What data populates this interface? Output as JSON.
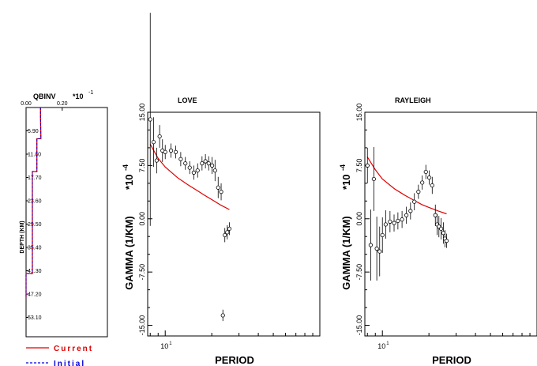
{
  "chart_data": [
    {
      "type": "step-line",
      "title": "QBINV",
      "x_multiplier": "*10",
      "x_multiplier_exp": "-1",
      "xlabel": "",
      "ylabel": "DEPTH (KM)",
      "x_tick_labels": [
        "0.00",
        "0.20"
      ],
      "y_ticks": [
        "5.90",
        "11.80",
        "17.70",
        "23.60",
        "29.50",
        "35.40",
        "41.30",
        "47.20",
        "53.10"
      ],
      "xlim": [
        0.0,
        0.45
      ],
      "ylim": [
        0,
        58
      ],
      "y_inverted": true,
      "series": [
        {
          "name": "Current",
          "color": "#e00000",
          "depth": [
            0,
            2.4,
            7.9,
            7.9,
            16.2,
            16.2,
            42.0,
            42.0,
            48.0
          ],
          "q": [
            0.08,
            0.08,
            0.082,
            0.06,
            0.06,
            0.035,
            0.035,
            0.0,
            0.0
          ]
        },
        {
          "name": "Initial",
          "color": "#0000e0",
          "depth": [
            0,
            2.4,
            7.9,
            7.9,
            16.2,
            16.2,
            42.0,
            42.0,
            48.0
          ],
          "q": [
            0.08,
            0.08,
            0.082,
            0.06,
            0.06,
            0.035,
            0.035,
            0.0,
            0.0
          ]
        }
      ]
    },
    {
      "type": "scatter-errorbar",
      "title": "LOVE",
      "xlabel": "PERIOD",
      "ylabel": "GAMMA (1/KM)",
      "y_multiplier": "*10",
      "y_multiplier_exp": "-4",
      "x_scale": "log",
      "x_tick_labels": [
        "10"
      ],
      "x_tick_exp": "1",
      "y_tick_labels": [
        "15.00",
        "7.50",
        "0.00",
        "-7.50",
        "-15.00"
      ],
      "xlim": [
        7.7,
        100
      ],
      "ylim": [
        -16.5,
        15
      ],
      "observed": [
        {
          "x": 8.0,
          "y": 14.0,
          "err": 15.0
        },
        {
          "x": 8.4,
          "y": 10.8,
          "err": 3.5
        },
        {
          "x": 8.8,
          "y": 8.2,
          "err": 1.8
        },
        {
          "x": 9.2,
          "y": 11.6,
          "err": 1.6
        },
        {
          "x": 9.6,
          "y": 9.6,
          "err": 1.6
        },
        {
          "x": 10.0,
          "y": 9.4,
          "err": 1.0
        },
        {
          "x": 10.9,
          "y": 9.6,
          "err": 1.0
        },
        {
          "x": 11.7,
          "y": 9.4,
          "err": 0.9
        },
        {
          "x": 12.6,
          "y": 8.4,
          "err": 1.0
        },
        {
          "x": 13.5,
          "y": 7.8,
          "err": 0.9
        },
        {
          "x": 14.4,
          "y": 7.2,
          "err": 0.9
        },
        {
          "x": 15.3,
          "y": 6.5,
          "err": 1.0
        },
        {
          "x": 16.2,
          "y": 6.8,
          "err": 1.0
        },
        {
          "x": 17.3,
          "y": 7.8,
          "err": 1.0
        },
        {
          "x": 18.2,
          "y": 8.1,
          "err": 1.0
        },
        {
          "x": 19.1,
          "y": 7.8,
          "err": 1.0
        },
        {
          "x": 20.1,
          "y": 7.5,
          "err": 1.2
        },
        {
          "x": 21.0,
          "y": 6.8,
          "err": 1.5
        },
        {
          "x": 22.0,
          "y": 4.4,
          "err": 1.5
        },
        {
          "x": 23.0,
          "y": 3.8,
          "err": 1.2
        },
        {
          "x": 24.3,
          "y": -2.3,
          "err": 1.0
        },
        {
          "x": 25.2,
          "y": -1.9,
          "err": 1.0
        },
        {
          "x": 26.0,
          "y": -1.4,
          "err": 0.9
        },
        {
          "x": 23.6,
          "y": -13.6,
          "err": 0.8
        }
      ],
      "predicted": {
        "color": "#e00000",
        "x": [
          8.0,
          9.0,
          10.0,
          12.0,
          14.0,
          16.0,
          18.0,
          20.0,
          23.0,
          26.0
        ],
        "y": [
          10.5,
          8.5,
          7.3,
          5.8,
          4.8,
          4.0,
          3.3,
          2.7,
          1.9,
          1.3
        ]
      }
    },
    {
      "type": "scatter-errorbar",
      "title": "RAYLEIGH",
      "xlabel": "PERIOD",
      "ylabel": "GAMMA (1/KM)",
      "y_multiplier": "*10",
      "y_multiplier_exp": "-4",
      "x_scale": "log",
      "x_tick_labels": [
        "10"
      ],
      "x_tick_exp": "1",
      "y_tick_labels": [
        "15.00",
        "7.50",
        "0.00",
        "-7.50",
        "-15.00"
      ],
      "xlim": [
        7.7,
        100
      ],
      "ylim": [
        -16.5,
        15
      ],
      "observed": [
        {
          "x": 8.0,
          "y": 7.5,
          "err": 2.5
        },
        {
          "x": 8.4,
          "y": -3.7,
          "err": 5.0
        },
        {
          "x": 8.8,
          "y": 5.6,
          "err": 4.5
        },
        {
          "x": 9.2,
          "y": -4.2,
          "err": 4.5
        },
        {
          "x": 9.6,
          "y": -4.6,
          "err": 3.5
        },
        {
          "x": 10.0,
          "y": -2.3,
          "err": 2.5
        },
        {
          "x": 10.5,
          "y": -0.8,
          "err": 2.0
        },
        {
          "x": 11.2,
          "y": -0.4,
          "err": 1.5
        },
        {
          "x": 11.9,
          "y": -0.6,
          "err": 1.2
        },
        {
          "x": 12.6,
          "y": -0.3,
          "err": 1.2
        },
        {
          "x": 13.4,
          "y": -0.1,
          "err": 1.2
        },
        {
          "x": 14.3,
          "y": 0.5,
          "err": 1.2
        },
        {
          "x": 15.2,
          "y": 1.1,
          "err": 1.2
        },
        {
          "x": 16.1,
          "y": 2.4,
          "err": 1.2
        },
        {
          "x": 17.1,
          "y": 3.8,
          "err": 1.0
        },
        {
          "x": 18.1,
          "y": 5.1,
          "err": 1.0
        },
        {
          "x": 19.1,
          "y": 6.6,
          "err": 1.0
        },
        {
          "x": 20.1,
          "y": 5.8,
          "err": 1.0
        },
        {
          "x": 21.0,
          "y": 4.7,
          "err": 1.2
        },
        {
          "x": 22.0,
          "y": 0.5,
          "err": 1.5
        },
        {
          "x": 22.6,
          "y": -0.8,
          "err": 1.5
        },
        {
          "x": 23.2,
          "y": -1.1,
          "err": 1.5
        },
        {
          "x": 24.0,
          "y": -1.4,
          "err": 1.5
        },
        {
          "x": 24.8,
          "y": -2.0,
          "err": 1.5
        },
        {
          "x": 25.4,
          "y": -2.8,
          "err": 1.2
        },
        {
          "x": 26.0,
          "y": -3.1,
          "err": 1.0
        }
      ],
      "predicted": {
        "color": "#e00000",
        "x": [
          8.0,
          9.0,
          10.0,
          12.0,
          14.0,
          16.0,
          18.0,
          20.0,
          23.0,
          26.0
        ],
        "y": [
          8.7,
          6.9,
          5.6,
          4.2,
          3.3,
          2.6,
          2.0,
          1.6,
          1.1,
          0.7
        ]
      }
    }
  ],
  "legend": [
    {
      "label": "Current",
      "color": "#e00000",
      "dash": false
    },
    {
      "label": "Initial",
      "color": "#0000e0",
      "dash": true
    }
  ]
}
